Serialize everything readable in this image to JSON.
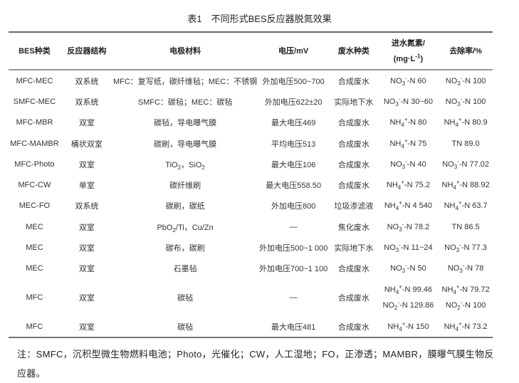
{
  "title": "表1　不同形式BES反应器脱氮效果",
  "headers": [
    "BES种类",
    "反应器结构",
    "电极材料",
    "电压/mV",
    "废水种类",
    "进水氮素/",
    "去除率/%"
  ],
  "header_unit": {
    "text": "(mg·L",
    "sup": "-1",
    "close": ")"
  },
  "rows": [
    {
      "type": "MFC-MEC",
      "structure": "双系统",
      "electrode": [
        {
          "t": "MFC：复写纸，碳纤维毡；MEC：不锈钢"
        }
      ],
      "voltage": "外加电压500~700",
      "wastewater": "合成废水",
      "influent": [
        [
          {
            "t": "NO"
          },
          {
            "sub": "3"
          },
          {
            "sup": "-"
          },
          {
            "t": "-N 60"
          }
        ]
      ],
      "removal": [
        [
          {
            "t": "NO"
          },
          {
            "sub": "3"
          },
          {
            "sup": "-"
          },
          {
            "t": "-N 100"
          }
        ]
      ]
    },
    {
      "type": "SMFC-MEC",
      "structure": "双系统",
      "electrode": [
        {
          "t": "SMFC：碳毡；MEC：碳毡"
        }
      ],
      "voltage": "外加电压622±20",
      "wastewater": "实际地下水",
      "influent": [
        [
          {
            "t": "NO"
          },
          {
            "sub": "3"
          },
          {
            "sup": "-"
          },
          {
            "t": "-N 30~60"
          }
        ]
      ],
      "removal": [
        [
          {
            "t": "NO"
          },
          {
            "sub": "3"
          },
          {
            "sup": "-"
          },
          {
            "t": "-N 100"
          }
        ]
      ]
    },
    {
      "type": "MFC-MBR",
      "structure": "双室",
      "electrode": [
        {
          "t": "碳毡，导电曝气膜"
        }
      ],
      "voltage": "最大电压469",
      "wastewater": "合成废水",
      "influent": [
        [
          {
            "t": "NH"
          },
          {
            "sub": "4"
          },
          {
            "sup": "+"
          },
          {
            "t": "-N 80"
          }
        ]
      ],
      "removal": [
        [
          {
            "t": "NH"
          },
          {
            "sub": "4"
          },
          {
            "sup": "+"
          },
          {
            "t": "-N 80.9"
          }
        ]
      ]
    },
    {
      "type": "MFC-MAMBR",
      "structure": "桶状双室",
      "electrode": [
        {
          "t": "碳刷，导电曝气膜"
        }
      ],
      "voltage": "平均电压513",
      "wastewater": "合成废水",
      "influent": [
        [
          {
            "t": "NH"
          },
          {
            "sub": "4"
          },
          {
            "sup": "+"
          },
          {
            "t": "-N 75"
          }
        ]
      ],
      "removal": [
        [
          {
            "t": "TN 89.0"
          }
        ]
      ]
    },
    {
      "type": "MFC-Photo",
      "structure": "双室",
      "electrode": [
        {
          "t": "TiO"
        },
        {
          "sub": "2"
        },
        {
          "t": "，SiO"
        },
        {
          "sub": "2"
        }
      ],
      "voltage": "最大电压106",
      "wastewater": "合成废水",
      "influent": [
        [
          {
            "t": "NO"
          },
          {
            "sub": "3"
          },
          {
            "sup": "-"
          },
          {
            "t": "-N 40"
          }
        ]
      ],
      "removal": [
        [
          {
            "t": "NO"
          },
          {
            "sub": "3"
          },
          {
            "sup": "-"
          },
          {
            "t": "-N 77.02"
          }
        ]
      ]
    },
    {
      "type": "MFC-CW",
      "structure": "单室",
      "electrode": [
        {
          "t": "碳纤维刷"
        }
      ],
      "voltage": "最大电压558.50",
      "wastewater": "合成废水",
      "influent": [
        [
          {
            "t": "NH"
          },
          {
            "sub": "4"
          },
          {
            "sup": "+"
          },
          {
            "t": "-N 75.2"
          }
        ]
      ],
      "removal": [
        [
          {
            "t": "NH"
          },
          {
            "sub": "4"
          },
          {
            "sup": "+"
          },
          {
            "t": "-N 88.92"
          }
        ]
      ]
    },
    {
      "type": "MEC-FO",
      "structure": "双系统",
      "electrode": [
        {
          "t": "碳刷，碳纸"
        }
      ],
      "voltage": "外加电压800",
      "wastewater": "垃圾渗滤液",
      "influent": [
        [
          {
            "t": "NH"
          },
          {
            "sub": "4"
          },
          {
            "sup": "+"
          },
          {
            "t": "-N 4 540"
          }
        ]
      ],
      "removal": [
        [
          {
            "t": "NH"
          },
          {
            "sub": "4"
          },
          {
            "sup": "+"
          },
          {
            "t": "-N 63.7"
          }
        ]
      ]
    },
    {
      "type": "MEC",
      "structure": "双室",
      "electrode": [
        {
          "t": "PbO"
        },
        {
          "sub": "2"
        },
        {
          "t": "/Ti，Cu/Zn"
        }
      ],
      "voltage": "—",
      "wastewater": "焦化废水",
      "influent": [
        [
          {
            "t": "NO"
          },
          {
            "sub": "3"
          },
          {
            "sup": "-"
          },
          {
            "t": "-N 78.2"
          }
        ]
      ],
      "removal": [
        [
          {
            "t": "TN 86.5"
          }
        ]
      ]
    },
    {
      "type": "MEC",
      "structure": "双室",
      "electrode": [
        {
          "t": "碳布，碳刷"
        }
      ],
      "voltage": "外加电压500~1 000",
      "wastewater": "实际地下水",
      "influent": [
        [
          {
            "t": "NO"
          },
          {
            "sub": "3"
          },
          {
            "sup": "-"
          },
          {
            "t": "-N 11~24"
          }
        ]
      ],
      "removal": [
        [
          {
            "t": "NO"
          },
          {
            "sub": "3"
          },
          {
            "sup": "-"
          },
          {
            "t": "-N 77.3"
          }
        ]
      ]
    },
    {
      "type": "MEC",
      "structure": "双室",
      "electrode": [
        {
          "t": "石墨毡"
        }
      ],
      "voltage": "外加电压700~1 100",
      "wastewater": "合成废水",
      "influent": [
        [
          {
            "t": "NO"
          },
          {
            "sub": "3"
          },
          {
            "sup": "-"
          },
          {
            "t": "-N 50"
          }
        ]
      ],
      "removal": [
        [
          {
            "t": "NO"
          },
          {
            "sub": "3"
          },
          {
            "sup": "-"
          },
          {
            "t": "-N 78"
          }
        ]
      ]
    },
    {
      "type": "MFC",
      "structure": "双室",
      "electrode": [
        {
          "t": "碳毡"
        }
      ],
      "voltage": "—",
      "wastewater": "合成废水",
      "influent": [
        [
          {
            "t": "NH"
          },
          {
            "sub": "4"
          },
          {
            "sup": "+"
          },
          {
            "t": "-N 99.46"
          }
        ],
        [
          {
            "t": "NO"
          },
          {
            "sub": "2"
          },
          {
            "sup": "-"
          },
          {
            "t": "-N 129.86"
          }
        ]
      ],
      "removal": [
        [
          {
            "t": "NH"
          },
          {
            "sub": "4"
          },
          {
            "sup": "+"
          },
          {
            "t": "-N 79.72"
          }
        ],
        [
          {
            "t": "NO"
          },
          {
            "sub": "2"
          },
          {
            "sup": "-"
          },
          {
            "t": "-N 100"
          }
        ]
      ]
    },
    {
      "type": "MFC",
      "structure": "双室",
      "electrode": [
        {
          "t": "碳毡"
        }
      ],
      "voltage": "最大电压481",
      "wastewater": "合成废水",
      "influent": [
        [
          {
            "t": "NH"
          },
          {
            "sub": "4"
          },
          {
            "sup": "+"
          },
          {
            "t": "-N 150"
          }
        ]
      ],
      "removal": [
        [
          {
            "t": "NH"
          },
          {
            "sub": "4"
          },
          {
            "sup": "+"
          },
          {
            "t": "-N 73.2"
          }
        ]
      ]
    }
  ],
  "note": "注：SMFC，沉积型微生物燃料电池；Photo，光催化；CW，人工湿地；FO，正渗透；MAMBR，膜曝气膜生物反应器。"
}
